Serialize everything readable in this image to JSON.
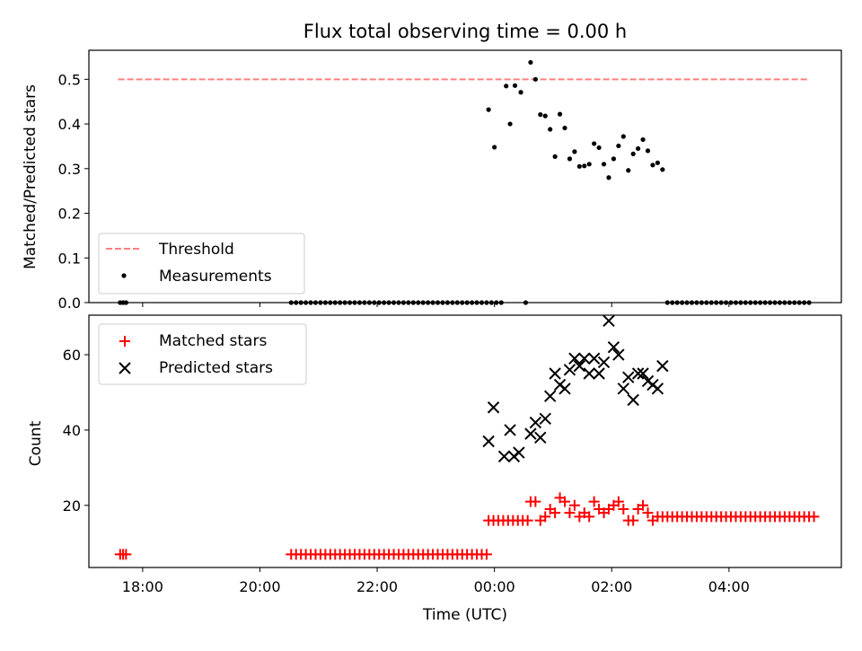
{
  "chart_data": [
    {
      "type": "scatter",
      "title": "Flux total observing time = 0.00 h",
      "xlabel": "",
      "ylabel": "Matched/Predicted stars",
      "xlim": [
        "17:05",
        "05:55"
      ],
      "ylim": [
        0,
        0.565
      ],
      "yticks": [
        "0.0",
        "0.1",
        "0.2",
        "0.3",
        "0.4",
        "0.5"
      ],
      "legend_position": "lower-left",
      "threshold": {
        "name": "Threshold",
        "value": 0.5,
        "x_start": "17:35",
        "x_end": "05:20",
        "color": "#ff7f7f",
        "style": "dashed"
      },
      "series": [
        {
          "name": "Measurements",
          "color": "#000000",
          "marker": "dot",
          "points": [
            [
              "17:37",
              0
            ],
            [
              "17:40",
              0
            ],
            [
              "17:43",
              0
            ],
            [
              "20:32",
              0
            ],
            [
              "20:37",
              0
            ],
            [
              "20:42",
              0
            ],
            [
              "20:47",
              0
            ],
            [
              "20:52",
              0
            ],
            [
              "20:57",
              0
            ],
            [
              "21:02",
              0
            ],
            [
              "21:07",
              0
            ],
            [
              "21:12",
              0
            ],
            [
              "21:17",
              0
            ],
            [
              "21:22",
              0
            ],
            [
              "21:27",
              0
            ],
            [
              "21:32",
              0
            ],
            [
              "21:37",
              0
            ],
            [
              "21:42",
              0
            ],
            [
              "21:47",
              0
            ],
            [
              "21:52",
              0
            ],
            [
              "21:57",
              0
            ],
            [
              "22:02",
              0
            ],
            [
              "22:07",
              0
            ],
            [
              "22:12",
              0
            ],
            [
              "22:17",
              0
            ],
            [
              "22:22",
              0
            ],
            [
              "22:27",
              0
            ],
            [
              "22:32",
              0
            ],
            [
              "22:37",
              0
            ],
            [
              "22:42",
              0
            ],
            [
              "22:47",
              0
            ],
            [
              "22:52",
              0
            ],
            [
              "22:57",
              0
            ],
            [
              "23:02",
              0
            ],
            [
              "23:07",
              0
            ],
            [
              "23:12",
              0
            ],
            [
              "23:17",
              0
            ],
            [
              "23:22",
              0
            ],
            [
              "23:27",
              0
            ],
            [
              "23:32",
              0
            ],
            [
              "23:37",
              0
            ],
            [
              "23:42",
              0
            ],
            [
              "23:47",
              0
            ],
            [
              "23:52",
              0
            ],
            [
              "23:57",
              0
            ],
            [
              "00:02",
              0
            ],
            [
              "00:07",
              0
            ],
            [
              "00:32",
              0
            ],
            [
              "23:54",
              0.432
            ],
            [
              "00:00",
              0.348
            ],
            [
              "00:12",
              0.485
            ],
            [
              "00:16",
              0.4
            ],
            [
              "00:21",
              0.486
            ],
            [
              "00:27",
              0.471
            ],
            [
              "00:37",
              0.538
            ],
            [
              "00:42",
              0.5
            ],
            [
              "00:47",
              0.421
            ],
            [
              "00:52",
              0.418
            ],
            [
              "00:57",
              0.388
            ],
            [
              "01:02",
              0.327
            ],
            [
              "01:07",
              0.422
            ],
            [
              "01:12",
              0.391
            ],
            [
              "01:17",
              0.322
            ],
            [
              "01:22",
              0.338
            ],
            [
              "01:27",
              0.305
            ],
            [
              "01:32",
              0.306
            ],
            [
              "01:37",
              0.31
            ],
            [
              "01:42",
              0.356
            ],
            [
              "01:47",
              0.347
            ],
            [
              "01:52",
              0.31
            ],
            [
              "01:57",
              0.28
            ],
            [
              "02:02",
              0.322
            ],
            [
              "02:07",
              0.351
            ],
            [
              "02:12",
              0.372
            ],
            [
              "02:17",
              0.296
            ],
            [
              "02:22",
              0.333
            ],
            [
              "02:27",
              0.345
            ],
            [
              "02:32",
              0.365
            ],
            [
              "02:37",
              0.34
            ],
            [
              "02:42",
              0.308
            ],
            [
              "02:47",
              0.313
            ],
            [
              "02:52",
              0.298
            ],
            [
              "02:57",
              0
            ],
            [
              "03:02",
              0
            ],
            [
              "03:07",
              0
            ],
            [
              "03:12",
              0
            ],
            [
              "03:17",
              0
            ],
            [
              "03:22",
              0
            ],
            [
              "03:27",
              0
            ],
            [
              "03:32",
              0
            ],
            [
              "03:37",
              0
            ],
            [
              "03:42",
              0
            ],
            [
              "03:47",
              0
            ],
            [
              "03:52",
              0
            ],
            [
              "03:57",
              0
            ],
            [
              "04:02",
              0
            ],
            [
              "04:07",
              0
            ],
            [
              "04:12",
              0
            ],
            [
              "04:17",
              0
            ],
            [
              "04:22",
              0
            ],
            [
              "04:27",
              0
            ],
            [
              "04:32",
              0
            ],
            [
              "04:37",
              0
            ],
            [
              "04:42",
              0
            ],
            [
              "04:47",
              0
            ],
            [
              "04:52",
              0
            ],
            [
              "04:57",
              0
            ],
            [
              "05:02",
              0
            ],
            [
              "05:07",
              0
            ],
            [
              "05:12",
              0
            ],
            [
              "05:17",
              0
            ],
            [
              "05:22",
              0
            ]
          ]
        }
      ]
    },
    {
      "type": "scatter",
      "title": "",
      "xlabel": "Time (UTC)",
      "ylabel": "Count",
      "xlim": [
        "17:05",
        "05:55"
      ],
      "ylim": [
        3.5,
        70.5
      ],
      "xticks": [
        "18:00",
        "20:00",
        "22:00",
        "00:00",
        "02:00",
        "04:00"
      ],
      "yticks": [
        "20",
        "40",
        "60"
      ],
      "legend_position": "top-left",
      "series": [
        {
          "name": "Matched stars",
          "color": "#ff0000",
          "marker": "plus",
          "points": [
            [
              "17:37",
              7
            ],
            [
              "17:40",
              7
            ],
            [
              "17:43",
              7
            ],
            [
              "20:32",
              7
            ],
            [
              "20:37",
              7
            ],
            [
              "20:42",
              7
            ],
            [
              "20:47",
              7
            ],
            [
              "20:52",
              7
            ],
            [
              "20:57",
              7
            ],
            [
              "21:02",
              7
            ],
            [
              "21:07",
              7
            ],
            [
              "21:12",
              7
            ],
            [
              "21:17",
              7
            ],
            [
              "21:22",
              7
            ],
            [
              "21:27",
              7
            ],
            [
              "21:32",
              7
            ],
            [
              "21:37",
              7
            ],
            [
              "21:42",
              7
            ],
            [
              "21:47",
              7
            ],
            [
              "21:52",
              7
            ],
            [
              "21:57",
              7
            ],
            [
              "22:02",
              7
            ],
            [
              "22:07",
              7
            ],
            [
              "22:12",
              7
            ],
            [
              "22:17",
              7
            ],
            [
              "22:22",
              7
            ],
            [
              "22:27",
              7
            ],
            [
              "22:32",
              7
            ],
            [
              "22:37",
              7
            ],
            [
              "22:42",
              7
            ],
            [
              "22:47",
              7
            ],
            [
              "22:52",
              7
            ],
            [
              "22:57",
              7
            ],
            [
              "23:02",
              7
            ],
            [
              "23:07",
              7
            ],
            [
              "23:12",
              7
            ],
            [
              "23:17",
              7
            ],
            [
              "23:22",
              7
            ],
            [
              "23:27",
              7
            ],
            [
              "23:32",
              7
            ],
            [
              "23:37",
              7
            ],
            [
              "23:42",
              7
            ],
            [
              "23:47",
              7
            ],
            [
              "23:52",
              7
            ],
            [
              "23:54",
              16
            ],
            [
              "23:59",
              16
            ],
            [
              "00:04",
              16
            ],
            [
              "00:09",
              16
            ],
            [
              "00:14",
              16
            ],
            [
              "00:19",
              16
            ],
            [
              "00:24",
              16
            ],
            [
              "00:29",
              16
            ],
            [
              "00:34",
              16
            ],
            [
              "00:37",
              21
            ],
            [
              "00:42",
              21
            ],
            [
              "00:47",
              16
            ],
            [
              "00:52",
              17
            ],
            [
              "00:57",
              19
            ],
            [
              "01:02",
              18
            ],
            [
              "01:07",
              22
            ],
            [
              "01:12",
              21
            ],
            [
              "01:17",
              18
            ],
            [
              "01:22",
              20
            ],
            [
              "01:27",
              17
            ],
            [
              "01:32",
              18
            ],
            [
              "01:37",
              17
            ],
            [
              "01:42",
              21
            ],
            [
              "01:47",
              19
            ],
            [
              "01:52",
              18
            ],
            [
              "01:57",
              19
            ],
            [
              "02:02",
              20
            ],
            [
              "02:07",
              21
            ],
            [
              "02:12",
              19
            ],
            [
              "02:17",
              16
            ],
            [
              "02:22",
              16
            ],
            [
              "02:27",
              19
            ],
            [
              "02:32",
              20
            ],
            [
              "02:37",
              18
            ],
            [
              "02:42",
              16
            ],
            [
              "02:47",
              17
            ],
            [
              "02:52",
              17
            ],
            [
              "02:57",
              17
            ],
            [
              "03:02",
              17
            ],
            [
              "03:07",
              17
            ],
            [
              "03:12",
              17
            ],
            [
              "03:17",
              17
            ],
            [
              "03:22",
              17
            ],
            [
              "03:27",
              17
            ],
            [
              "03:32",
              17
            ],
            [
              "03:37",
              17
            ],
            [
              "03:42",
              17
            ],
            [
              "03:47",
              17
            ],
            [
              "03:52",
              17
            ],
            [
              "03:57",
              17
            ],
            [
              "04:02",
              17
            ],
            [
              "04:07",
              17
            ],
            [
              "04:12",
              17
            ],
            [
              "04:17",
              17
            ],
            [
              "04:22",
              17
            ],
            [
              "04:27",
              17
            ],
            [
              "04:32",
              17
            ],
            [
              "04:37",
              17
            ],
            [
              "04:42",
              17
            ],
            [
              "04:47",
              17
            ],
            [
              "04:52",
              17
            ],
            [
              "04:57",
              17
            ],
            [
              "05:02",
              17
            ],
            [
              "05:07",
              17
            ],
            [
              "05:12",
              17
            ],
            [
              "05:17",
              17
            ],
            [
              "05:22",
              17
            ],
            [
              "05:27",
              17
            ]
          ]
        },
        {
          "name": "Predicted stars",
          "color": "#000000",
          "marker": "x",
          "points": [
            [
              "23:54",
              37
            ],
            [
              "23:59",
              46
            ],
            [
              "00:10",
              33
            ],
            [
              "00:16",
              40
            ],
            [
              "00:20",
              33
            ],
            [
              "00:25",
              34
            ],
            [
              "00:37",
              39
            ],
            [
              "00:42",
              42
            ],
            [
              "00:47",
              38
            ],
            [
              "00:52",
              43
            ],
            [
              "00:57",
              49
            ],
            [
              "01:02",
              55
            ],
            [
              "01:07",
              52
            ],
            [
              "01:12",
              51
            ],
            [
              "01:17",
              56
            ],
            [
              "01:22",
              59
            ],
            [
              "01:27",
              57
            ],
            [
              "01:32",
              59
            ],
            [
              "01:37",
              55
            ],
            [
              "01:42",
              59
            ],
            [
              "01:47",
              55
            ],
            [
              "01:52",
              58
            ],
            [
              "01:57",
              69
            ],
            [
              "02:02",
              62
            ],
            [
              "02:07",
              60
            ],
            [
              "02:12",
              51
            ],
            [
              "02:17",
              54
            ],
            [
              "02:22",
              48
            ],
            [
              "02:27",
              55
            ],
            [
              "02:32",
              55
            ],
            [
              "02:37",
              53
            ],
            [
              "02:42",
              52
            ],
            [
              "02:47",
              51
            ],
            [
              "02:52",
              57
            ]
          ]
        }
      ]
    }
  ]
}
